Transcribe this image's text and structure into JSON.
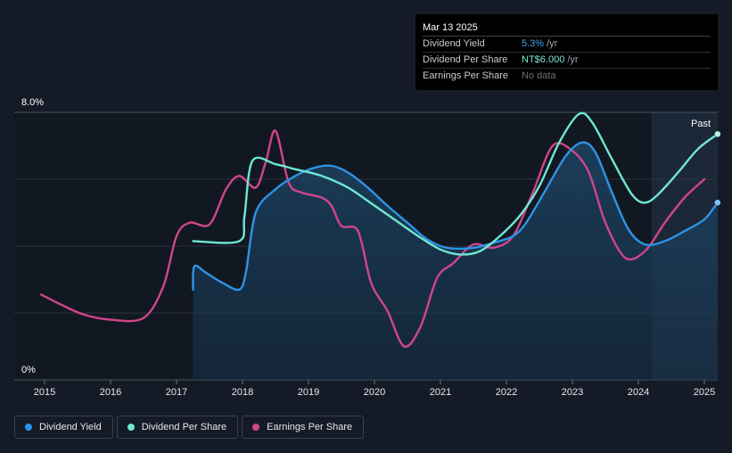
{
  "tooltip": {
    "date": "Mar 13 2025",
    "rows": {
      "yield_label": "Dividend Yield",
      "yield_value": "5.3%",
      "yield_unit": "/yr",
      "dps_label": "Dividend Per Share",
      "dps_value": "NT$6.000",
      "dps_unit": "/yr",
      "eps_label": "Earnings Per Share",
      "eps_value": "No data"
    }
  },
  "past_label": "Past",
  "legend": [
    {
      "label": "Dividend Yield",
      "color": "#2e93e6"
    },
    {
      "label": "Dividend Per Share",
      "color": "#6ee7d3"
    },
    {
      "label": "Earnings Per Share",
      "color": "#d0458b"
    }
  ],
  "chart_data": {
    "type": "line",
    "x_ticks": [
      "2015",
      "2016",
      "2017",
      "2018",
      "2019",
      "2020",
      "2021",
      "2022",
      "2023",
      "2024",
      "2025"
    ],
    "y_tick_labels": [
      "0%",
      "8.0%"
    ],
    "ylim": [
      0,
      8
    ],
    "xlim": [
      2014.55,
      2025.2
    ],
    "series": [
      {
        "name": "Dividend Yield",
        "color": "#2e93e6",
        "filled": true,
        "points": [
          [
            2017.25,
            2.7
          ],
          [
            2017.27,
            3.4
          ],
          [
            2017.45,
            3.2
          ],
          [
            2017.7,
            2.9
          ],
          [
            2017.95,
            2.7
          ],
          [
            2018.05,
            3.2
          ],
          [
            2018.2,
            5.0
          ],
          [
            2018.5,
            5.7
          ],
          [
            2018.8,
            6.1
          ],
          [
            2019.1,
            6.35
          ],
          [
            2019.35,
            6.4
          ],
          [
            2019.6,
            6.2
          ],
          [
            2019.9,
            5.75
          ],
          [
            2020.2,
            5.2
          ],
          [
            2020.5,
            4.7
          ],
          [
            2020.8,
            4.2
          ],
          [
            2021.1,
            3.95
          ],
          [
            2021.5,
            3.95
          ],
          [
            2021.8,
            4.1
          ],
          [
            2022.1,
            4.3
          ],
          [
            2022.3,
            4.7
          ],
          [
            2022.6,
            5.7
          ],
          [
            2022.9,
            6.7
          ],
          [
            2023.15,
            7.1
          ],
          [
            2023.35,
            6.8
          ],
          [
            2023.6,
            5.6
          ],
          [
            2023.85,
            4.5
          ],
          [
            2024.1,
            4.05
          ],
          [
            2024.4,
            4.15
          ],
          [
            2024.7,
            4.45
          ],
          [
            2025.0,
            4.8
          ],
          [
            2025.2,
            5.3
          ]
        ]
      },
      {
        "name": "Dividend Per Share",
        "color": "#6ee7d3",
        "filled": false,
        "points": [
          [
            2017.25,
            4.15
          ],
          [
            2017.95,
            4.15
          ],
          [
            2018.03,
            4.9
          ],
          [
            2018.15,
            6.55
          ],
          [
            2018.5,
            6.45
          ],
          [
            2018.8,
            6.3
          ],
          [
            2019.2,
            6.1
          ],
          [
            2019.6,
            5.75
          ],
          [
            2019.9,
            5.35
          ],
          [
            2020.3,
            4.8
          ],
          [
            2020.7,
            4.25
          ],
          [
            2021.0,
            3.9
          ],
          [
            2021.3,
            3.75
          ],
          [
            2021.6,
            3.85
          ],
          [
            2021.9,
            4.3
          ],
          [
            2022.2,
            4.9
          ],
          [
            2022.5,
            5.8
          ],
          [
            2022.8,
            7.1
          ],
          [
            2023.1,
            7.95
          ],
          [
            2023.3,
            7.7
          ],
          [
            2023.6,
            6.6
          ],
          [
            2023.9,
            5.55
          ],
          [
            2024.1,
            5.3
          ],
          [
            2024.3,
            5.55
          ],
          [
            2024.6,
            6.2
          ],
          [
            2024.9,
            6.9
          ],
          [
            2025.2,
            7.35
          ]
        ]
      },
      {
        "name": "Earnings Per Share",
        "color": "#d0458b",
        "filled": false,
        "points": [
          [
            2014.95,
            2.55
          ],
          [
            2015.25,
            2.25
          ],
          [
            2015.6,
            1.95
          ],
          [
            2016.0,
            1.8
          ],
          [
            2016.5,
            1.85
          ],
          [
            2016.8,
            2.8
          ],
          [
            2017.0,
            4.3
          ],
          [
            2017.2,
            4.7
          ],
          [
            2017.5,
            4.65
          ],
          [
            2017.75,
            5.7
          ],
          [
            2017.95,
            6.1
          ],
          [
            2018.2,
            5.75
          ],
          [
            2018.35,
            6.5
          ],
          [
            2018.5,
            7.45
          ],
          [
            2018.7,
            5.9
          ],
          [
            2018.9,
            5.6
          ],
          [
            2019.2,
            5.45
          ],
          [
            2019.35,
            5.2
          ],
          [
            2019.5,
            4.6
          ],
          [
            2019.75,
            4.45
          ],
          [
            2019.95,
            2.9
          ],
          [
            2020.2,
            2.05
          ],
          [
            2020.45,
            1.0
          ],
          [
            2020.7,
            1.6
          ],
          [
            2020.95,
            3.05
          ],
          [
            2021.2,
            3.5
          ],
          [
            2021.5,
            4.05
          ],
          [
            2021.8,
            3.95
          ],
          [
            2022.1,
            4.3
          ],
          [
            2022.4,
            5.6
          ],
          [
            2022.7,
            7.0
          ],
          [
            2023.0,
            6.85
          ],
          [
            2023.25,
            6.2
          ],
          [
            2023.5,
            4.7
          ],
          [
            2023.8,
            3.65
          ],
          [
            2024.1,
            3.85
          ],
          [
            2024.4,
            4.7
          ],
          [
            2024.7,
            5.45
          ],
          [
            2025.0,
            6.0
          ]
        ]
      }
    ],
    "shaded_region": {
      "label": "Past",
      "x_from": 2024.2,
      "x_to": 2025.2
    },
    "grid": true,
    "legend_position": "bottom-left"
  }
}
